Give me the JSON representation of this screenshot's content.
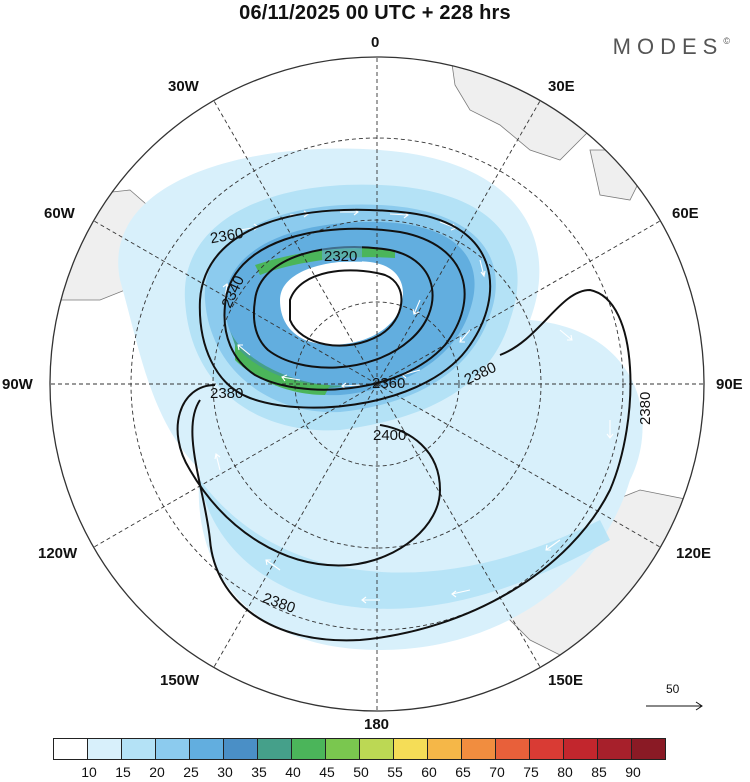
{
  "title": "06/11/2025  00 UTC  + 228 hrs",
  "brand": "MODES",
  "brand_mark": "©",
  "longitude_labels": {
    "n": "0",
    "nne": "30E",
    "ene": "60E",
    "e": "90E",
    "ese": "120E",
    "sse": "150E",
    "s": "180",
    "ssw": "150W",
    "wsw": "120W",
    "w": "90W",
    "wnw": "60W",
    "nnw": "30W"
  },
  "contours": {
    "c2320": "2320",
    "c2340": "2340",
    "c2360a": "2360",
    "c2360b": "2360",
    "c2380a": "2380",
    "c2380b": "2380",
    "c2380c": "2380",
    "c2380d": "2380",
    "c2400": "2400"
  },
  "reference_vector": "50",
  "colorbar": {
    "labels": [
      "10",
      "15",
      "20",
      "25",
      "30",
      "35",
      "40",
      "45",
      "50",
      "55",
      "60",
      "65",
      "70",
      "75",
      "80",
      "85",
      "90"
    ],
    "colors": [
      "#ffffff",
      "#d8f0fb",
      "#b4e2f6",
      "#8ccbee",
      "#62aedf",
      "#4a8fc6",
      "#45a08a",
      "#4bb55a",
      "#7ac74f",
      "#bcd854",
      "#f5dd57",
      "#f5b748",
      "#f18d3f",
      "#e8603a",
      "#d93b34",
      "#c2262d",
      "#a7202b",
      "#8a1a25"
    ]
  }
}
